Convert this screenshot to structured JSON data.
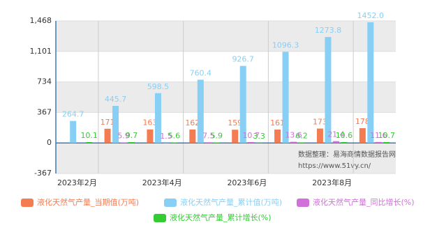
{
  "chart_data": {
    "type": "bar",
    "categories": [
      "2023年2月",
      null,
      "2023年4月",
      null,
      "2023年6月",
      null,
      "2023年8月",
      null
    ],
    "series": [
      {
        "name": "液化天然气产量_当期值(万吨)",
        "color": "#f47c52",
        "values": [
          null,
          171,
          163,
          162,
          159,
          161,
          173,
          178
        ]
      },
      {
        "name": "液化天然气产量_累计值(万吨)",
        "color": "#88cff5",
        "values": [
          264.7,
          445.7,
          598.5,
          760.4,
          926.7,
          1096.3,
          1273.8,
          1452
        ],
        "value_labels": [
          "264.7",
          "445.7",
          "598.5",
          "760.4",
          "926.7",
          "1096.3",
          "1273.8",
          "1452.0"
        ]
      },
      {
        "name": "液化天然气产量_同比增长(%)",
        "color": "#d070d8",
        "values": [
          null,
          5.9,
          1.5,
          7.5,
          10.7,
          13.6,
          21.4,
          11.6
        ]
      },
      {
        "name": "液化天然气产量_累计增长(%)",
        "color": "#33cc33",
        "values": [
          10.1,
          9.7,
          5.6,
          5.9,
          3.3,
          6.2,
          10.6,
          10.7
        ]
      }
    ],
    "ylim": [
      -367,
      1468
    ],
    "yticks": [
      -367,
      0,
      367,
      734,
      {
        "value": 1101,
        "label": "1,101"
      },
      {
        "value": 1468,
        "label": "1,468"
      }
    ],
    "annotations": [
      "数据整理：易海商情数据报告网",
      "https://www.51vy.cn/"
    ]
  }
}
